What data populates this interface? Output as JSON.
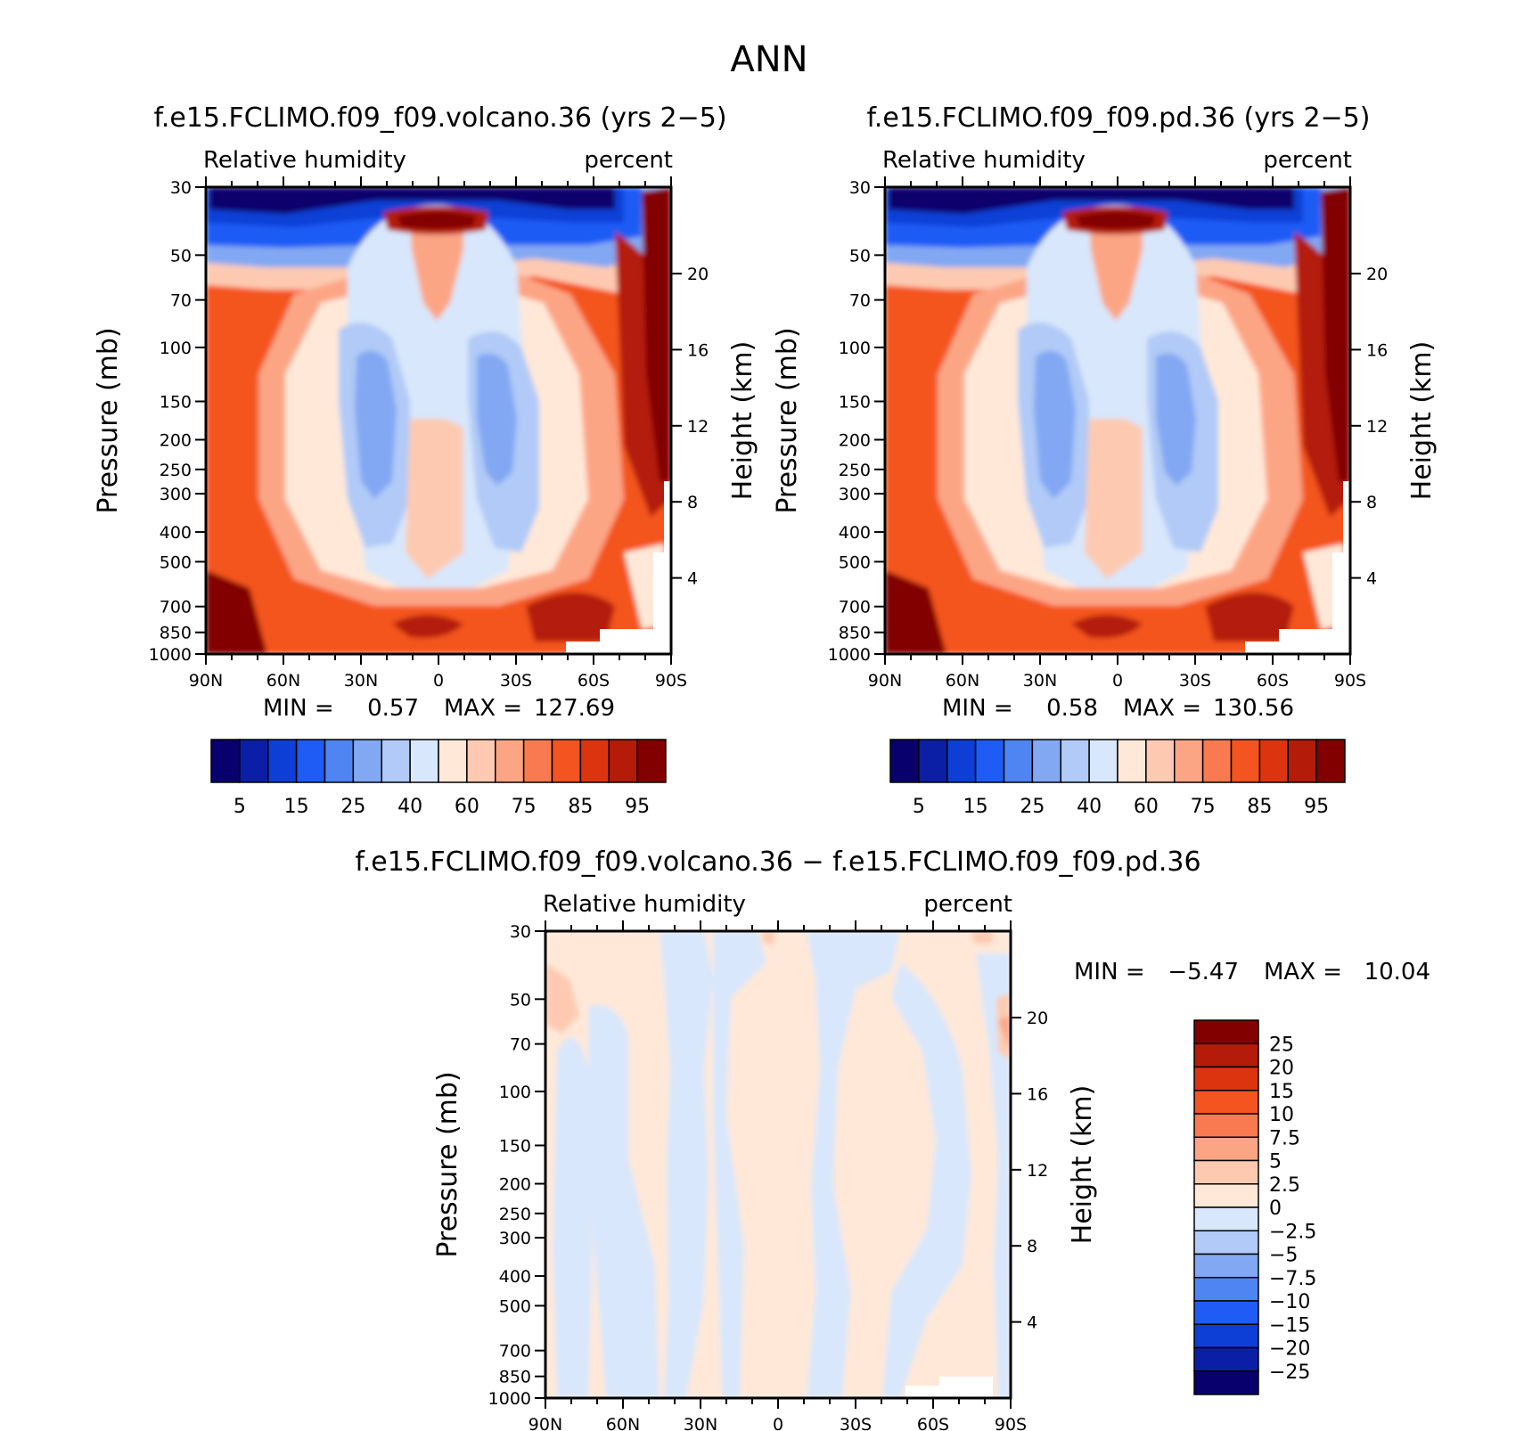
{
  "page_title": "ANN",
  "colors": {
    "rh_scale": [
      "#08006c",
      "#0b1fa6",
      "#0d3fd6",
      "#1f5cf5",
      "#4f84f3",
      "#82a8f3",
      "#b1caf7",
      "#d8e7fb",
      "#ffe8d8",
      "#fdcab1",
      "#fca585",
      "#f97a50",
      "#f4541f",
      "#dd3410",
      "#b41b08",
      "#830000"
    ],
    "diff_scale": [
      "#08006c",
      "#0b1fa6",
      "#0d3fd6",
      "#1f5cf5",
      "#4f84f3",
      "#82a8f3",
      "#b1caf7",
      "#d8e7fb",
      "#ffe8d8",
      "#fdcab1",
      "#fca585",
      "#f97a50",
      "#f4541f",
      "#dd3410",
      "#b41b08",
      "#830000"
    ]
  },
  "chart_data": [
    {
      "type": "heatmap",
      "title": "f.e15.FCLIMO.f09_f09.volcano.36 (yrs 2−5)",
      "left_label": "Relative humidity",
      "right_label": "percent",
      "ylabel": "Pressure (mb)",
      "ylabel_right": "Height (km)",
      "x_ticks": [
        "90N",
        "60N",
        "30N",
        "0",
        "30S",
        "60S",
        "90S"
      ],
      "y_ticks": [
        30,
        50,
        70,
        100,
        150,
        200,
        250,
        300,
        400,
        500,
        700,
        850,
        1000
      ],
      "y_ticks_right": [
        20,
        16,
        12,
        8,
        4
      ],
      "ylim": [
        30,
        1000
      ],
      "y_scale": "log",
      "min_label": "MIN =",
      "min_value": "0.57",
      "max_label": "MAX =",
      "max_value": "127.69",
      "colorbar_labels": [
        "5",
        "15",
        "25",
        "40",
        "60",
        "75",
        "85",
        "95"
      ]
    },
    {
      "type": "heatmap",
      "title": "f.e15.FCLIMO.f09_f09.pd.36 (yrs 2−5)",
      "left_label": "Relative humidity",
      "right_label": "percent",
      "ylabel": "Pressure (mb)",
      "ylabel_right": "Height (km)",
      "x_ticks": [
        "90N",
        "60N",
        "30N",
        "0",
        "30S",
        "60S",
        "90S"
      ],
      "y_ticks": [
        30,
        50,
        70,
        100,
        150,
        200,
        250,
        300,
        400,
        500,
        700,
        850,
        1000
      ],
      "y_ticks_right": [
        20,
        16,
        12,
        8,
        4
      ],
      "ylim": [
        30,
        1000
      ],
      "y_scale": "log",
      "min_label": "MIN =",
      "min_value": "0.58",
      "max_label": "MAX =",
      "max_value": "130.56",
      "colorbar_labels": [
        "5",
        "15",
        "25",
        "40",
        "60",
        "75",
        "85",
        "95"
      ]
    },
    {
      "type": "heatmap",
      "title": "f.e15.FCLIMO.f09_f09.volcano.36 − f.e15.FCLIMO.f09_f09.pd.36",
      "left_label": "Relative humidity",
      "right_label": "percent",
      "ylabel": "Pressure (mb)",
      "ylabel_right": "Height (km)",
      "x_ticks": [
        "90N",
        "60N",
        "30N",
        "0",
        "30S",
        "60S",
        "90S"
      ],
      "y_ticks": [
        30,
        50,
        70,
        100,
        150,
        200,
        250,
        300,
        400,
        500,
        700,
        850,
        1000
      ],
      "y_ticks_right": [
        20,
        16,
        12,
        8,
        4
      ],
      "ylim": [
        30,
        1000
      ],
      "y_scale": "log",
      "min_label": "MIN =",
      "min_value": "−5.47",
      "max_label": "MAX =",
      "max_value": "10.04",
      "colorbar_labels": [
        "25",
        "20",
        "15",
        "10",
        "7.5",
        "5",
        "2.5",
        "0",
        "−2.5",
        "−5",
        "−7.5",
        "−10",
        "−15",
        "−20",
        "−25"
      ]
    }
  ]
}
